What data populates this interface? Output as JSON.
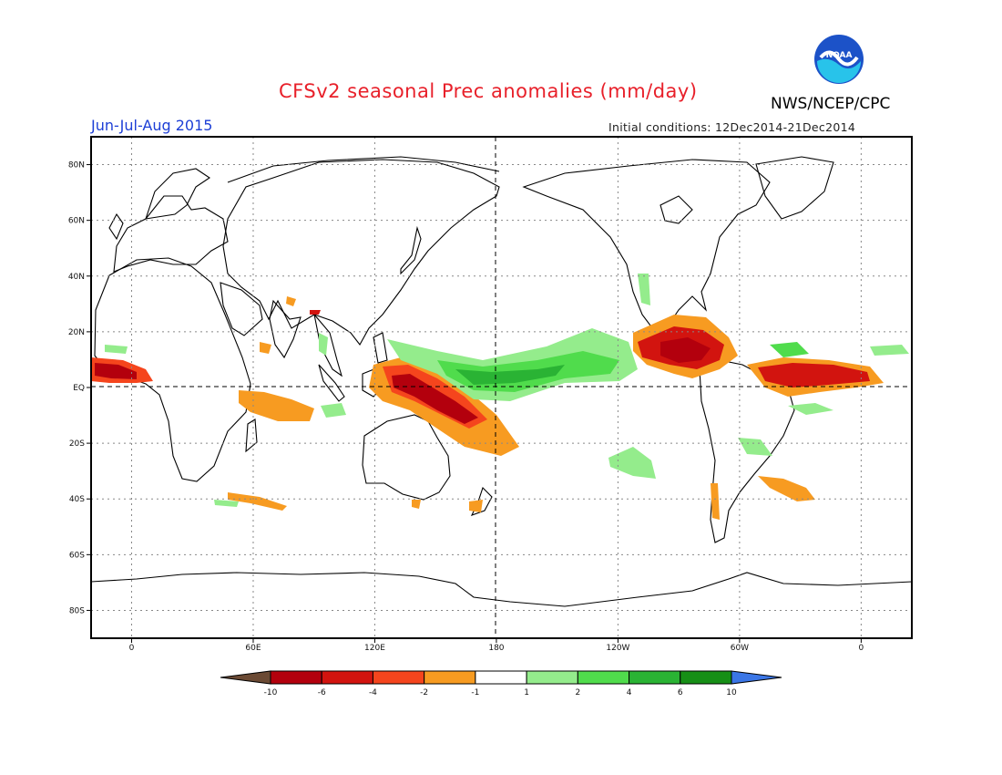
{
  "header": {
    "title": "CFSv2 seasonal Prec anomalies (mm/day)",
    "agency": "NWS/NCEP/CPC",
    "period": "Jun-Jul-Aug 2015",
    "initial_conditions": "Initial conditions: 12Dec2014-21Dec2014",
    "logo_text": "NOAA"
  },
  "map": {
    "projection": "equirectangular",
    "lat_labels": [
      "80N",
      "60N",
      "40N",
      "20N",
      "EQ",
      "20S",
      "40S",
      "60S",
      "80S"
    ],
    "lon_labels": [
      "0",
      "60E",
      "120E",
      "180",
      "120W",
      "60W",
      "0"
    ],
    "lat_values": [
      80,
      60,
      40,
      20,
      0,
      -20,
      -40,
      -60,
      -80
    ],
    "lon_values": [
      0,
      60,
      120,
      180,
      240,
      300,
      360
    ],
    "lon_range": [
      -20,
      385
    ],
    "lat_range": [
      -90,
      90
    ],
    "grid": "dotted"
  },
  "colorbar": {
    "ticks": [
      "-10",
      "-6",
      "-4",
      "-2",
      "-1",
      "1",
      "2",
      "4",
      "6",
      "10"
    ],
    "colors": [
      "#6b4a34",
      "#b3000d",
      "#d2140f",
      "#f5451d",
      "#f79b21",
      "#ffffff",
      "#94ec8c",
      "#50dc4c",
      "#2ab334",
      "#168f16",
      "#3b76e6"
    ]
  },
  "anomaly_regions": [
    {
      "name": "West Africa Gulf of Guinea",
      "category": "-6",
      "center": [
        -5,
        6
      ]
    },
    {
      "name": "Tropical Indian Ocean",
      "category": "-2",
      "center": [
        75,
        -7
      ]
    },
    {
      "name": "Western Pacific / New Guinea",
      "category": "-6",
      "center": [
        150,
        -5
      ]
    },
    {
      "name": "Central Pacific ITCZ",
      "category": "4",
      "center": [
        185,
        5
      ]
    },
    {
      "name": "Central America / Caribbean",
      "category": "-6",
      "center": [
        278,
        12
      ]
    },
    {
      "name": "Tropical Atlantic",
      "category": "-6",
      "center": [
        330,
        4
      ]
    },
    {
      "name": "South Atlantic",
      "category": "-2",
      "center": [
        333,
        -40
      ]
    },
    {
      "name": "South Pacific",
      "category": "2",
      "center": [
        220,
        -27
      ]
    }
  ]
}
